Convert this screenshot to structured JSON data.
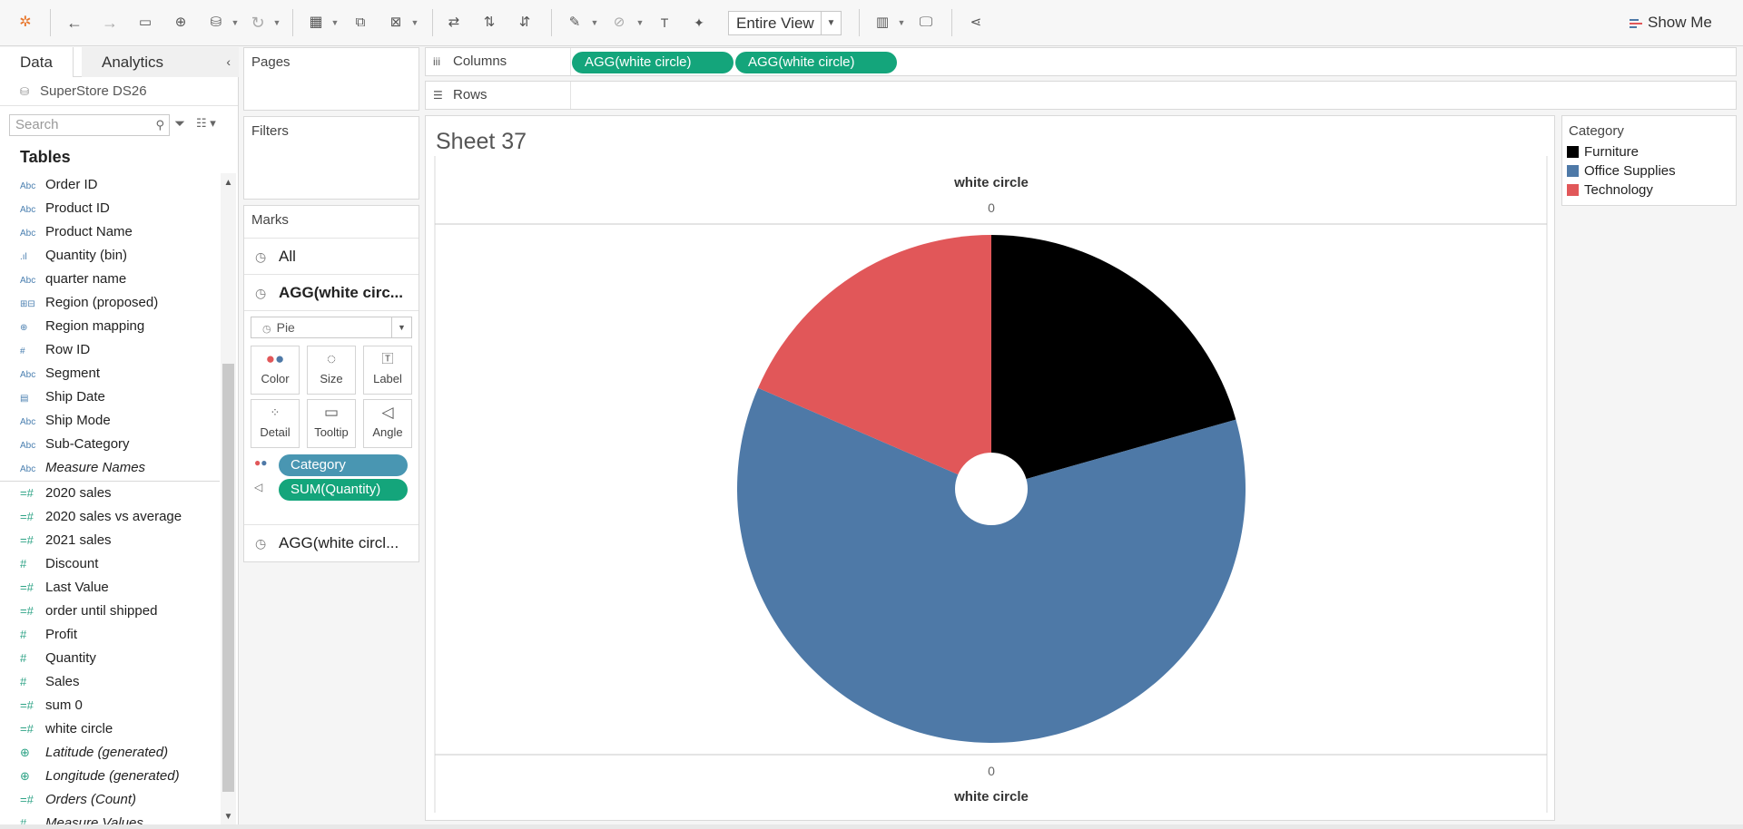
{
  "toolbar": {
    "fit_label": "Entire View",
    "show_me_label": "Show Me",
    "icons": [
      "tableau-logo-icon",
      "undo-icon",
      "redo-icon",
      "save-icon",
      "new-datasource-icon",
      "datasource-icon",
      "refresh-icon",
      "new-sheet-icon",
      "duplicate-icon",
      "clear-icon",
      "swap-icon",
      "sort-asc-icon",
      "sort-desc-icon",
      "highlight-icon",
      "group-icon",
      "label-icon",
      "pin-icon",
      "card-icon",
      "present-icon",
      "share-icon"
    ]
  },
  "data_pane": {
    "tab_data": "Data",
    "tab_analytics": "Analytics",
    "datasource": "SuperStore DS26",
    "search_placeholder": "Search",
    "tables_label": "Tables",
    "dimensions": [
      {
        "type": "Abc",
        "name": "Order ID"
      },
      {
        "type": "Abc",
        "name": "Product ID"
      },
      {
        "type": "Abc",
        "name": "Product Name"
      },
      {
        "type": "bin",
        "name": "Quantity (bin)"
      },
      {
        "type": "Abc",
        "name": "quarter name"
      },
      {
        "type": "grp",
        "name": "Region (proposed)"
      },
      {
        "type": "geo",
        "name": "Region mapping"
      },
      {
        "type": "#",
        "name": "Row ID"
      },
      {
        "type": "Abc",
        "name": "Segment"
      },
      {
        "type": "date",
        "name": "Ship Date"
      },
      {
        "type": "Abc",
        "name": "Ship Mode"
      },
      {
        "type": "Abc",
        "name": "Sub-Category"
      },
      {
        "type": "Abc",
        "name": "Measure Names",
        "italic": true
      }
    ],
    "measures": [
      {
        "type": "=#",
        "name": "2020 sales"
      },
      {
        "type": "=#",
        "name": "2020 sales vs average"
      },
      {
        "type": "=#",
        "name": "2021 sales"
      },
      {
        "type": "#",
        "name": "Discount"
      },
      {
        "type": "=#",
        "name": "Last Value"
      },
      {
        "type": "=#",
        "name": "order until shipped"
      },
      {
        "type": "#",
        "name": "Profit"
      },
      {
        "type": "#",
        "name": "Quantity"
      },
      {
        "type": "#",
        "name": "Sales"
      },
      {
        "type": "=#",
        "name": "sum 0"
      },
      {
        "type": "=#",
        "name": "white circle"
      },
      {
        "type": "geo",
        "name": "Latitude (generated)",
        "italic": true
      },
      {
        "type": "geo",
        "name": "Longitude (generated)",
        "italic": true
      },
      {
        "type": "=#",
        "name": "Orders (Count)",
        "italic": true
      },
      {
        "type": "#",
        "name": "Measure Values",
        "italic": true
      }
    ]
  },
  "pages_label": "Pages",
  "filters_label": "Filters",
  "marks": {
    "title": "Marks",
    "all_label": "All",
    "layer1_label": "AGG(white circ...",
    "mark_type": "Pie",
    "buttons": [
      "Color",
      "Size",
      "Label",
      "Detail",
      "Tooltip",
      "Angle"
    ],
    "pill_color": "Category",
    "pill_angle": "SUM(Quantity)",
    "layer2_label": "AGG(white circl..."
  },
  "shelves": {
    "columns_label": "Columns",
    "rows_label": "Rows",
    "column_pills": [
      "AGG(white circle)",
      "AGG(white circle)"
    ]
  },
  "sheet": {
    "title": "Sheet 37",
    "axis_top_title": "white circle",
    "axis_top_tick": "0",
    "axis_bottom_tick": "0",
    "axis_bottom_title": "white circle"
  },
  "legend": {
    "title": "Category",
    "items": [
      {
        "name": "Furniture",
        "color": "#000000"
      },
      {
        "name": "Office Supplies",
        "color": "#4e79a7"
      },
      {
        "name": "Technology",
        "color": "#e15759"
      }
    ]
  },
  "chart_data": {
    "type": "pie",
    "categories": [
      "Furniture",
      "Office Supplies",
      "Technology"
    ],
    "values": [
      20.6,
      60.9,
      18.5
    ],
    "value_unit": "percent of SUM(Quantity) (estimated)",
    "colors": [
      "#000000",
      "#4e79a7",
      "#e15759"
    ],
    "center_hole": true
  }
}
